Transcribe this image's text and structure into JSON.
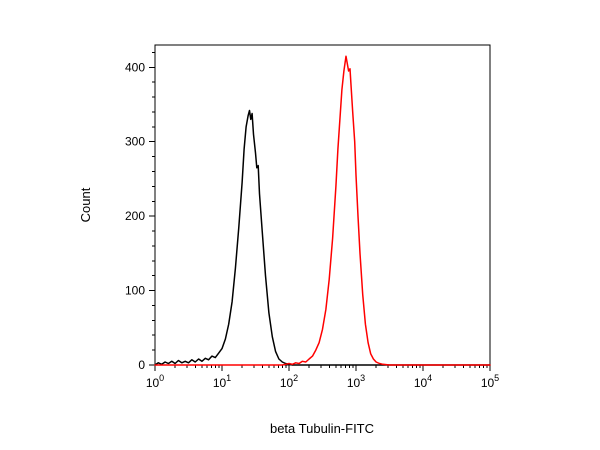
{
  "chart_data": {
    "type": "line",
    "title": "",
    "xlabel": "beta Tubulin-FITC",
    "ylabel": "Count",
    "x_scale": "log10",
    "x_range_log": [
      0,
      5
    ],
    "ylim": [
      0,
      430
    ],
    "y_major_ticks": [
      0,
      100,
      200,
      300,
      400
    ],
    "y_minor_step": 20,
    "x_decade_labels": [
      "0",
      "1",
      "2",
      "3",
      "4",
      "5"
    ],
    "background": "#ffffff",
    "frame_color": "#000000",
    "legend": "none",
    "grid": false,
    "series": [
      {
        "name": "black-histogram",
        "color": "#000000",
        "points": [
          [
            0.0,
            0
          ],
          [
            0.05,
            3
          ],
          [
            0.1,
            1
          ],
          [
            0.15,
            4
          ],
          [
            0.2,
            2
          ],
          [
            0.25,
            5
          ],
          [
            0.3,
            2
          ],
          [
            0.35,
            6
          ],
          [
            0.4,
            3
          ],
          [
            0.45,
            5
          ],
          [
            0.5,
            3
          ],
          [
            0.55,
            7
          ],
          [
            0.6,
            4
          ],
          [
            0.65,
            8
          ],
          [
            0.7,
            5
          ],
          [
            0.75,
            9
          ],
          [
            0.8,
            7
          ],
          [
            0.85,
            12
          ],
          [
            0.9,
            10
          ],
          [
            0.95,
            16
          ],
          [
            1.0,
            22
          ],
          [
            1.05,
            35
          ],
          [
            1.1,
            55
          ],
          [
            1.15,
            85
          ],
          [
            1.2,
            130
          ],
          [
            1.25,
            185
          ],
          [
            1.3,
            245
          ],
          [
            1.33,
            290
          ],
          [
            1.36,
            320
          ],
          [
            1.39,
            335
          ],
          [
            1.41,
            342
          ],
          [
            1.43,
            330
          ],
          [
            1.45,
            338
          ],
          [
            1.47,
            310
          ],
          [
            1.5,
            285
          ],
          [
            1.52,
            265
          ],
          [
            1.54,
            268
          ],
          [
            1.56,
            230
          ],
          [
            1.6,
            180
          ],
          [
            1.65,
            120
          ],
          [
            1.7,
            70
          ],
          [
            1.75,
            38
          ],
          [
            1.8,
            18
          ],
          [
            1.85,
            8
          ],
          [
            1.9,
            4
          ],
          [
            1.95,
            2
          ],
          [
            2.0,
            1
          ],
          [
            2.05,
            0
          ],
          [
            2.2,
            0
          ],
          [
            2.5,
            0
          ],
          [
            3.0,
            0
          ],
          [
            3.5,
            0
          ],
          [
            4.0,
            0
          ],
          [
            4.5,
            0
          ],
          [
            5.0,
            0
          ]
        ]
      },
      {
        "name": "red-histogram",
        "color": "#ff0000",
        "points": [
          [
            0.0,
            0
          ],
          [
            0.5,
            0
          ],
          [
            1.0,
            0
          ],
          [
            1.5,
            0
          ],
          [
            1.8,
            0
          ],
          [
            1.9,
            0
          ],
          [
            1.95,
            1
          ],
          [
            2.0,
            2
          ],
          [
            2.05,
            1
          ],
          [
            2.1,
            3
          ],
          [
            2.15,
            2
          ],
          [
            2.2,
            5
          ],
          [
            2.25,
            4
          ],
          [
            2.3,
            8
          ],
          [
            2.35,
            12
          ],
          [
            2.4,
            20
          ],
          [
            2.45,
            30
          ],
          [
            2.5,
            48
          ],
          [
            2.55,
            75
          ],
          [
            2.6,
            115
          ],
          [
            2.65,
            170
          ],
          [
            2.7,
            240
          ],
          [
            2.73,
            290
          ],
          [
            2.76,
            330
          ],
          [
            2.79,
            370
          ],
          [
            2.82,
            395
          ],
          [
            2.85,
            415
          ],
          [
            2.87,
            405
          ],
          [
            2.89,
            395
          ],
          [
            2.91,
            398
          ],
          [
            2.93,
            370
          ],
          [
            2.95,
            340
          ],
          [
            2.98,
            300
          ],
          [
            3.0,
            255
          ],
          [
            3.03,
            200
          ],
          [
            3.06,
            150
          ],
          [
            3.1,
            95
          ],
          [
            3.14,
            55
          ],
          [
            3.18,
            30
          ],
          [
            3.22,
            15
          ],
          [
            3.26,
            8
          ],
          [
            3.3,
            4
          ],
          [
            3.35,
            2
          ],
          [
            3.4,
            1
          ],
          [
            3.5,
            0
          ],
          [
            4.0,
            0
          ],
          [
            4.5,
            0
          ],
          [
            5.0,
            0
          ]
        ]
      }
    ]
  }
}
